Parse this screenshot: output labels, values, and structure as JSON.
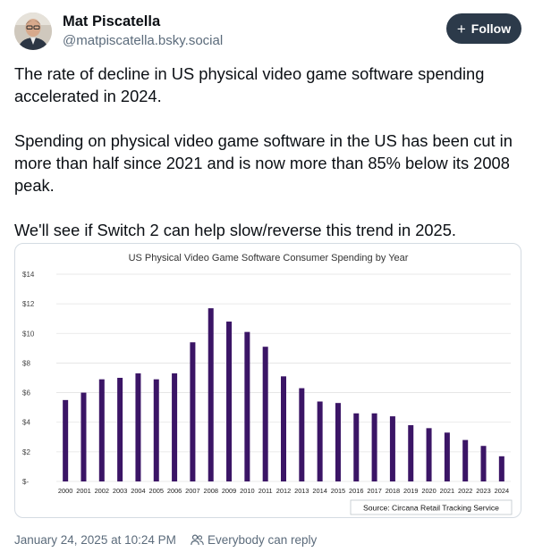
{
  "author": {
    "name": "Mat Piscatella",
    "handle": "@matpiscatella.bsky.social"
  },
  "follow_button": {
    "label": "Follow",
    "icon": "plus-icon"
  },
  "post": {
    "paragraphs": [
      "The rate of decline in US physical video game software spending accelerated in 2024.",
      "Spending on physical video game software in the US has been cut in more than half since 2021 and is now more than 85% below its 2008 peak.",
      "We'll see if Switch 2 can help slow/reverse this trend in 2025."
    ]
  },
  "footer": {
    "timestamp": "January 24, 2025 at 10:24 PM",
    "reply_setting": "Everybody can reply",
    "reply_icon": "people-icon"
  },
  "colors": {
    "bar": "#3b1566",
    "follow_bg": "#2c3a4a",
    "muted_text": "#5b6b7b"
  },
  "chart_data": {
    "type": "bar",
    "title": "US Physical Video Game Software Consumer Spending by Year",
    "source": "Source: Circana Retail Tracking Service",
    "categories": [
      "2000",
      "2001",
      "2002",
      "2003",
      "2004",
      "2005",
      "2006",
      "2007",
      "2008",
      "2009",
      "2010",
      "2011",
      "2012",
      "2013",
      "2014",
      "2015",
      "2016",
      "2017",
      "2018",
      "2019",
      "2020",
      "2021",
      "2022",
      "2023",
      "2024"
    ],
    "values": [
      5.5,
      6.0,
      6.9,
      7.0,
      7.3,
      6.9,
      7.3,
      9.4,
      11.7,
      10.8,
      10.1,
      9.1,
      7.1,
      6.3,
      5.4,
      5.3,
      4.6,
      4.6,
      4.4,
      3.8,
      3.6,
      3.3,
      2.8,
      2.4,
      1.7
    ],
    "yticks": [
      "$-",
      "$2",
      "$4",
      "$6",
      "$8",
      "$10",
      "$12",
      "$14"
    ],
    "ylim": [
      0,
      14
    ],
    "grid": true
  }
}
